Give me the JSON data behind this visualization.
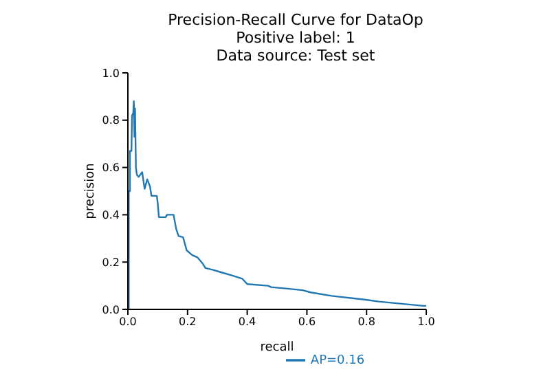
{
  "chart_data": {
    "type": "line",
    "title": "Precision-Recall Curve for DataOp",
    "subtitle": "Positive label: 1",
    "annotations": [
      "Data source: Test set"
    ],
    "xlabel": "recall",
    "ylabel": "precision",
    "xlim": [
      0,
      1
    ],
    "ylim": [
      0,
      1
    ],
    "xticks": [
      {
        "value": 0,
        "label": "0.0"
      },
      0.2,
      0.4,
      0.6,
      0.8,
      {
        "value": 1,
        "label": "1.0"
      }
    ],
    "yticks": [
      {
        "value": 0,
        "label": "0.0"
      },
      0.2,
      0.4,
      0.6,
      0.8,
      {
        "value": 1,
        "label": "1.0"
      }
    ],
    "grid": false,
    "legend": "bottom",
    "marker": "none",
    "line_style": "solid",
    "series": [
      {
        "name": "AP=0.16",
        "color": "#1f77b4",
        "x": [
          0,
          0.003,
          0.003,
          0.007,
          0.007,
          0.012,
          0.014,
          0.018,
          0.02,
          0.022,
          0.024,
          0.027,
          0.03,
          0.036,
          0.048,
          0.056,
          0.065,
          0.074,
          0.079,
          0.097,
          0.1,
          0.104,
          0.127,
          0.131,
          0.153,
          0.162,
          0.17,
          0.185,
          0.197,
          0.215,
          0.233,
          0.25,
          0.26,
          0.286,
          0.312,
          0.347,
          0.383,
          0.4,
          0.47,
          0.48,
          0.524,
          0.586,
          0.612,
          0.683,
          0.788,
          0.841,
          0.99,
          1.0
        ],
        "values": [
          0,
          0,
          0.5,
          0.5,
          0.67,
          0.67,
          0.82,
          0.83,
          0.88,
          0.73,
          0.85,
          0.6,
          0.57,
          0.56,
          0.58,
          0.51,
          0.55,
          0.52,
          0.48,
          0.48,
          0.45,
          0.39,
          0.39,
          0.4,
          0.4,
          0.34,
          0.31,
          0.305,
          0.25,
          0.23,
          0.22,
          0.195,
          0.175,
          0.167,
          0.157,
          0.144,
          0.13,
          0.107,
          0.1,
          0.094,
          0.089,
          0.081,
          0.072,
          0.057,
          0.042,
          0.033,
          0.015,
          0.015
        ]
      }
    ]
  }
}
